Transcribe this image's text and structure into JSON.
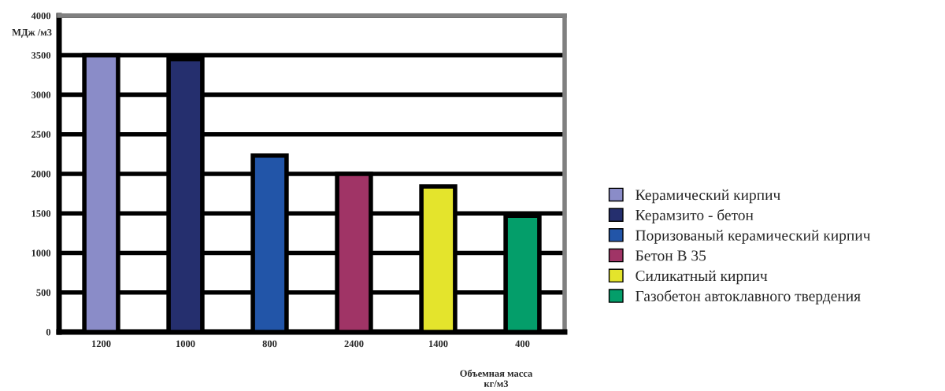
{
  "chart_data": {
    "type": "bar",
    "categories": [
      "1200",
      "1000",
      "800",
      "2400",
      "1400",
      "400"
    ],
    "ylabel": "МДж /м3",
    "xlabel": "Объемная масса\nкг/м3",
    "series": [
      {
        "name": "Керамический кирпич",
        "color": "#8a8cc8",
        "values": [
          3500,
          null,
          null,
          null,
          null,
          null
        ]
      },
      {
        "name": "Керамзито - бетон",
        "color": "#252f6e",
        "values": [
          null,
          3450,
          null,
          null,
          null,
          null
        ]
      },
      {
        "name": "Поризованый керамический кирпич",
        "color": "#2255a8",
        "values": [
          null,
          null,
          2230,
          null,
          null,
          null
        ]
      },
      {
        "name": "Бетон В 35",
        "color": "#a03466",
        "values": [
          null,
          null,
          null,
          2000,
          null,
          null
        ]
      },
      {
        "name": "Силикатный кирпич",
        "color": "#e4e42c",
        "values": [
          null,
          null,
          null,
          null,
          1840,
          null
        ]
      },
      {
        "name": "Газобетон автоклавного твердения",
        "color": "#049e6a",
        "values": [
          null,
          null,
          null,
          null,
          null,
          1470
        ]
      }
    ],
    "ylim": [
      0,
      4000
    ],
    "yticks": [
      0,
      500,
      1000,
      1500,
      2000,
      2500,
      3000,
      3500,
      4000
    ],
    "grid": "y",
    "legend": "right"
  }
}
